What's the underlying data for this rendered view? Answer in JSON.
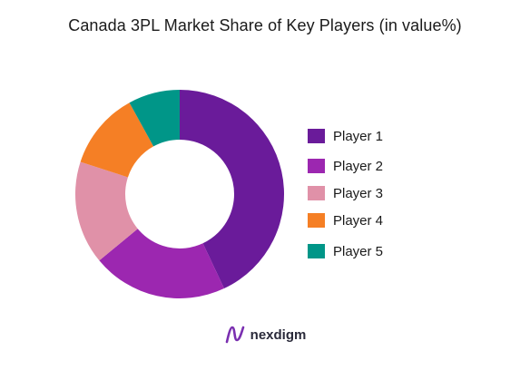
{
  "title": "Canada 3PL Market Share of Key Players (in value%)",
  "brand": {
    "name": "nexdigm",
    "icon": "nexdigm-logo-icon"
  },
  "chart_data": {
    "type": "pie",
    "donut": true,
    "title": "Canada 3PL Market Share of Key Players (in value%)",
    "categories": [
      "Player 1",
      "Player 2",
      "Player 3",
      "Player 4",
      "Player 5"
    ],
    "values": [
      43,
      21,
      16,
      12,
      8
    ],
    "colors": [
      "#6a1b9a",
      "#9c27b0",
      "#e091a8",
      "#f57f25",
      "#009688"
    ],
    "legend_position": "right",
    "start_angle_deg": 0,
    "direction": "clockwise"
  }
}
